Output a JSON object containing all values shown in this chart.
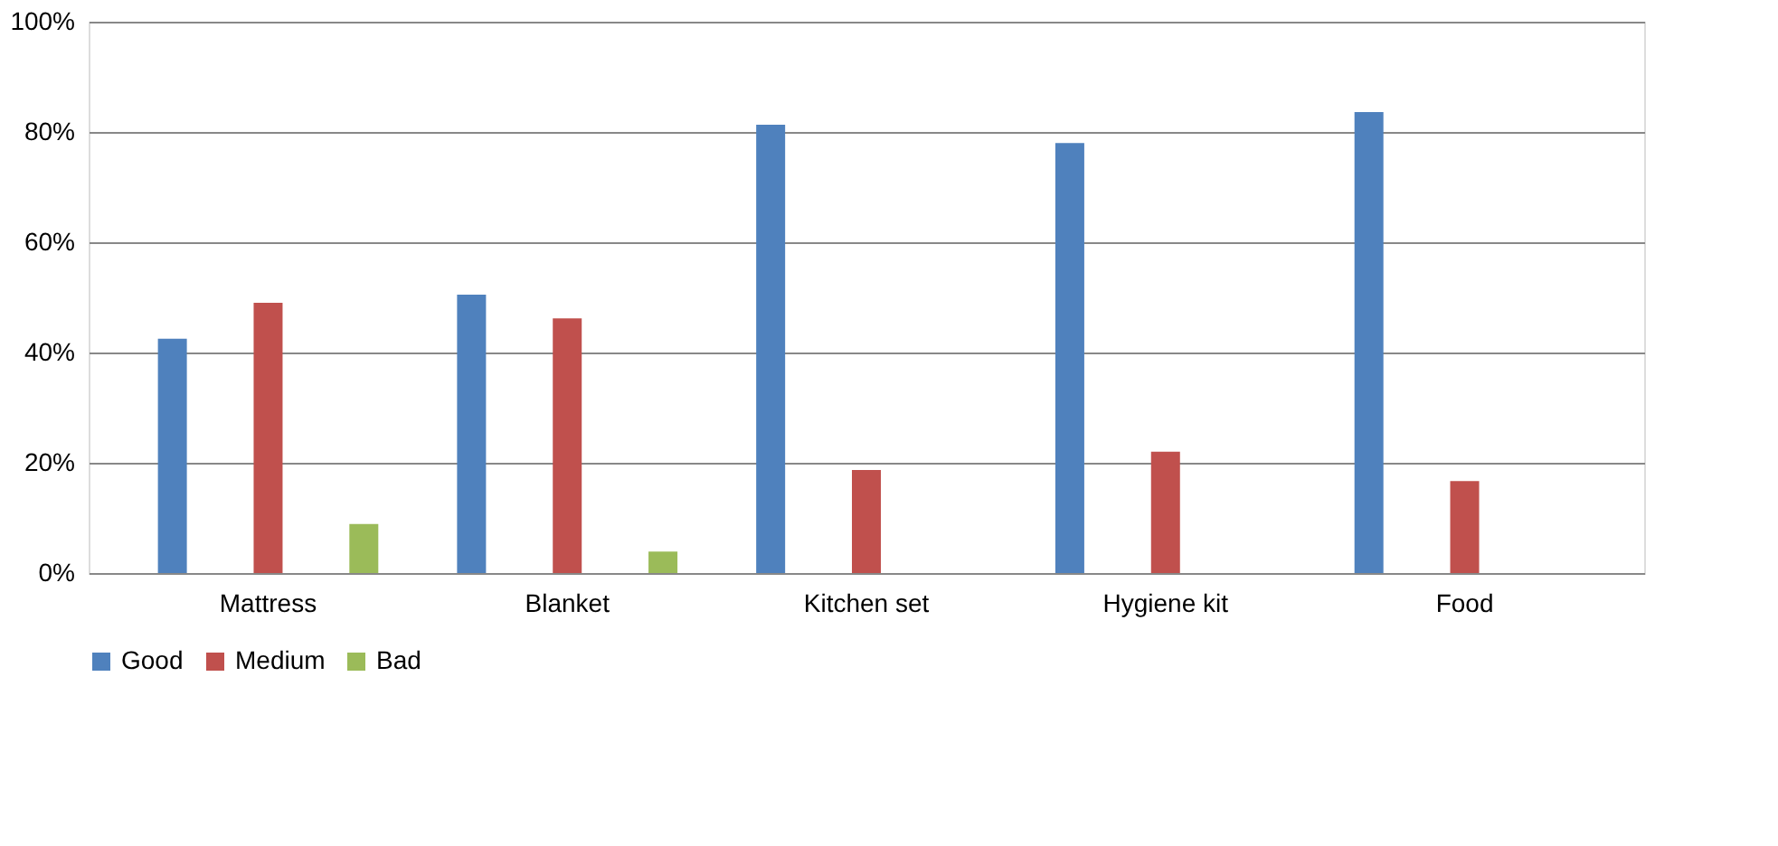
{
  "chart_data": {
    "type": "bar",
    "categories": [
      "Mattress",
      "Blanket",
      "Kitchen set",
      "Hygiene kit",
      "Food"
    ],
    "series": [
      {
        "name": "Good",
        "color": "#4f81bd",
        "values": [
          42.5,
          50.5,
          81.3,
          78,
          83.6
        ]
      },
      {
        "name": "Medium",
        "color": "#c0504d",
        "values": [
          49,
          46.2,
          18.7,
          22,
          16.7
        ]
      },
      {
        "name": "Bad",
        "color": "#9bbb59",
        "values": [
          8.9,
          3.9,
          0,
          0,
          0
        ]
      }
    ],
    "ylim": [
      0,
      100
    ],
    "yticks": [
      {
        "value": 0,
        "label": "0%"
      },
      {
        "value": 20,
        "label": "20%"
      },
      {
        "value": 40,
        "label": "40%"
      },
      {
        "value": 60,
        "label": "60%"
      },
      {
        "value": 80,
        "label": "80%"
      },
      {
        "value": 100,
        "label": "100%"
      }
    ],
    "grid": "y",
    "legend": "bottom"
  }
}
